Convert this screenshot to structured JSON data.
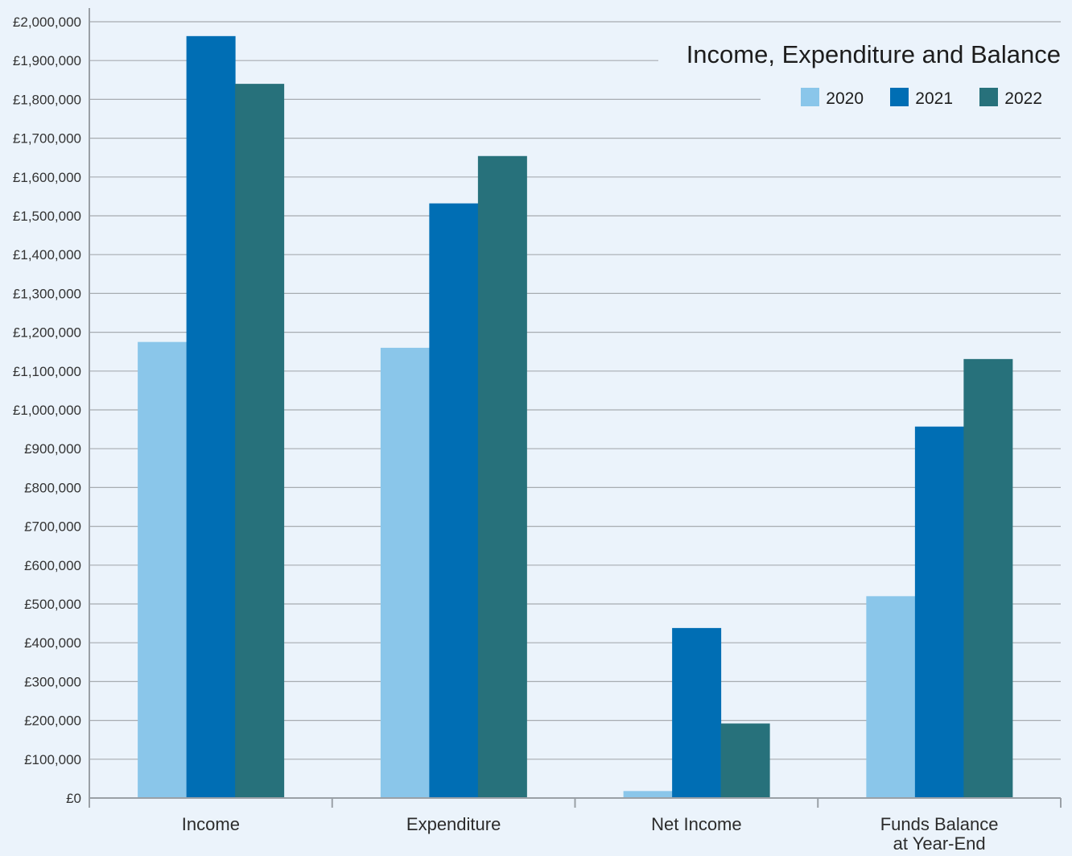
{
  "chart_data": {
    "type": "bar",
    "title": "Income, Expenditure and Balance",
    "xlabel": "",
    "ylabel": "",
    "ylim": [
      0,
      2000000
    ],
    "ytick_step": 100000,
    "yticks": [
      "£0",
      "£100,000",
      "£200,000",
      "£300,000",
      "£400,000",
      "£500,000",
      "£600,000",
      "£700,000",
      "£800,000",
      "£900,000",
      "£1,000,000",
      "£1,100,000",
      "£1,200,000",
      "£1,300,000",
      "£1,400,000",
      "£1,500,000",
      "£1,600,000",
      "£1,700,000",
      "£1,800,000",
      "£1,900,000",
      "£2,000,000"
    ],
    "categories": [
      [
        "Income"
      ],
      [
        "Expenditure"
      ],
      [
        "Net Income"
      ],
      [
        "Funds Balance",
        "at Year-End"
      ]
    ],
    "series": [
      {
        "name": "2020",
        "color": "#8ac6ea",
        "values": [
          1175000,
          1160000,
          18000,
          520000
        ]
      },
      {
        "name": "2021",
        "color": "#006eb4",
        "values": [
          1963000,
          1532000,
          438000,
          957000
        ]
      },
      {
        "name": "2022",
        "color": "#27717b",
        "values": [
          1840000,
          1654000,
          192000,
          1131000
        ]
      }
    ],
    "grid": true,
    "legend_position": "top-right",
    "background": "#ebf3fb",
    "gridline_color": "#a7acb1",
    "axis_color": "#9aa0a6"
  }
}
